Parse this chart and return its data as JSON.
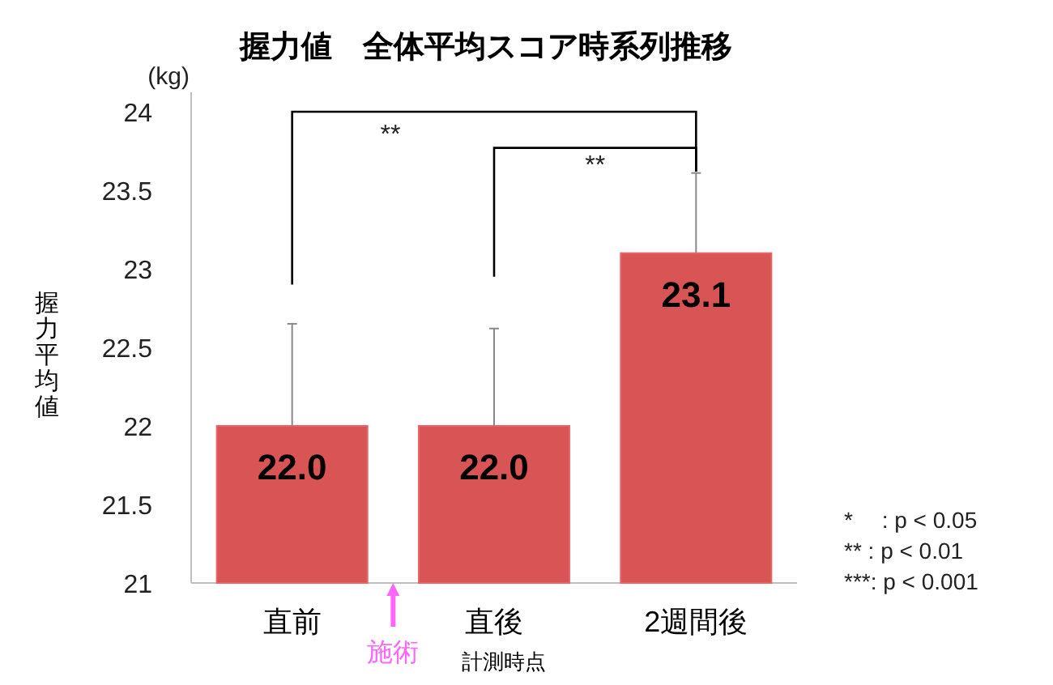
{
  "chart_data": {
    "type": "bar",
    "title": "握力値　全体平均スコア時系列推移",
    "xlabel": "計測時点",
    "ylabel": "握力平均値",
    "categories": [
      "直前",
      "直後",
      "2週間後"
    ],
    "values": [
      22.0,
      22.0,
      23.1
    ],
    "value_labels": [
      "22.0",
      "22.0",
      "23.1"
    ],
    "errors": [
      [
        22.0,
        22.65
      ],
      [
        22.0,
        22.62
      ],
      [
        23.1,
        23.61
      ]
    ],
    "color": "#d95455",
    "ylim": [
      21,
      24
    ],
    "yticks": [
      21,
      {
        "value": 21.5,
        "label": "21.5"
      },
      22,
      {
        "value": 22.5,
        "label": "22.5"
      },
      23,
      {
        "value": 23.5,
        "label": "23.5"
      },
      24
    ],
    "annotations": [
      {
        "text": "(kg)"
      },
      {
        "text": "**"
      },
      {
        "text": "**"
      },
      {
        "text": "施術"
      },
      {
        "text": "*　 : p < 0.05"
      },
      {
        "text": "**  : p < 0.01"
      },
      {
        "text": "***: p < 0.001"
      }
    ]
  }
}
